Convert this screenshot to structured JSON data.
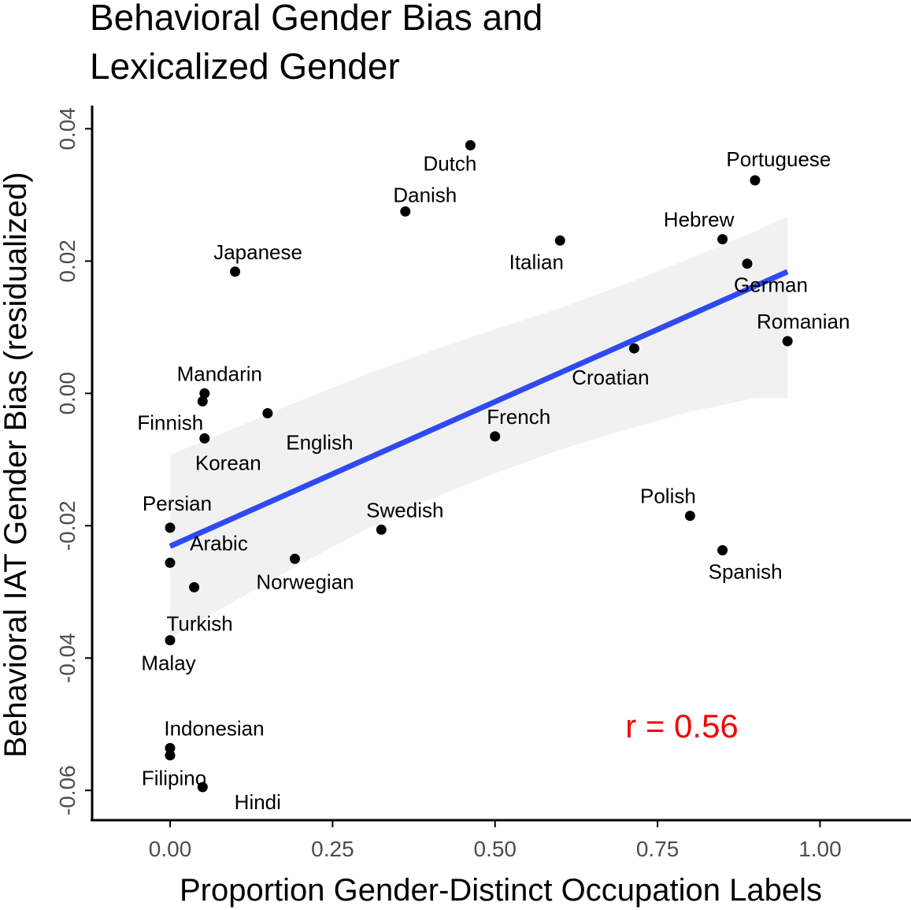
{
  "chart_data": {
    "type": "scatter",
    "title": [
      "Behavioral Gender Bias and",
      "Lexicalized Gender"
    ],
    "xlabel": "Proportion Gender-Distinct Occupation Labels",
    "ylabel": "Behavioral IAT Gender Bias (residualized)",
    "xlim": [
      -0.12,
      1.14
    ],
    "ylim": [
      -0.0645,
      0.0435
    ],
    "x_ticks": [
      0.0,
      0.25,
      0.5,
      0.75,
      1.0
    ],
    "x_tick_labels": [
      "0.00",
      "0.25",
      "0.50",
      "0.75",
      "1.00"
    ],
    "y_ticks": [
      0.04,
      0.02,
      0.0,
      -0.02,
      -0.04,
      -0.06
    ],
    "y_tick_labels": [
      "0.04",
      "0.02",
      "0.00",
      "-0.02",
      "-0.04",
      "-0.06"
    ],
    "grid": false,
    "points": [
      {
        "label": "Dutch",
        "x": 0.462,
        "y": 0.0375
      },
      {
        "label": "Portuguese",
        "x": 0.9,
        "y": 0.0322
      },
      {
        "label": "Danish",
        "x": 0.362,
        "y": 0.0275
      },
      {
        "label": "Hebrew",
        "x": 0.85,
        "y": 0.0233
      },
      {
        "label": "Italian",
        "x": 0.6,
        "y": 0.0231
      },
      {
        "label": "German",
        "x": 0.888,
        "y": 0.0196
      },
      {
        "label": "Japanese",
        "x": 0.1,
        "y": 0.0184
      },
      {
        "label": "Romanian",
        "x": 0.95,
        "y": 0.0079
      },
      {
        "label": "Croatian",
        "x": 0.714,
        "y": 0.0068
      },
      {
        "label": "Mandarin",
        "x": 0.053,
        "y": 0.0
      },
      {
        "label": "Finnish",
        "x": 0.05,
        "y": -0.0012
      },
      {
        "label": "English",
        "x": 0.15,
        "y": -0.003
      },
      {
        "label": "French",
        "x": 0.5,
        "y": -0.0065
      },
      {
        "label": "Korean",
        "x": 0.053,
        "y": -0.0068
      },
      {
        "label": "Polish",
        "x": 0.8,
        "y": -0.0185
      },
      {
        "label": "Persian",
        "x": 0.0,
        "y": -0.0203
      },
      {
        "label": "Swedish",
        "x": 0.325,
        "y": -0.0206
      },
      {
        "label": "Spanish",
        "x": 0.85,
        "y": -0.0237
      },
      {
        "label": "Norwegian",
        "x": 0.192,
        "y": -0.025
      },
      {
        "label": "Arabic",
        "x": 0.0,
        "y": -0.0256
      },
      {
        "label": "Turkish",
        "x": 0.037,
        "y": -0.0293
      },
      {
        "label": "Malay",
        "x": 0.0,
        "y": -0.0373
      },
      {
        "label": "Indonesian",
        "x": 0.0,
        "y": -0.0536
      },
      {
        "label": "Filipino",
        "x": 0.0,
        "y": -0.0547
      },
      {
        "label": "Hindi",
        "x": 0.05,
        "y": -0.0595
      }
    ],
    "fit_line": {
      "x": [
        0.0,
        0.95
      ],
      "y": [
        -0.0231,
        0.0184
      ],
      "color": "#2E4BF2"
    },
    "confidence_band": {
      "x": [
        0.0,
        0.1,
        0.2,
        0.3,
        0.4,
        0.5,
        0.6,
        0.7,
        0.8,
        0.9,
        0.95
      ],
      "upper": [
        -0.0093,
        -0.0052,
        -0.0011,
        0.0028,
        0.0064,
        0.0097,
        0.0129,
        0.0165,
        0.0204,
        0.0245,
        0.0268
      ],
      "lower": [
        -0.0369,
        -0.0313,
        -0.0258,
        -0.0206,
        -0.016,
        -0.0121,
        -0.0085,
        -0.0055,
        -0.0028,
        -0.0007,
        -0.0007
      ],
      "color": "#F1F1F1"
    },
    "annotation": {
      "text": "r = 0.56",
      "color": "#F40000"
    }
  }
}
